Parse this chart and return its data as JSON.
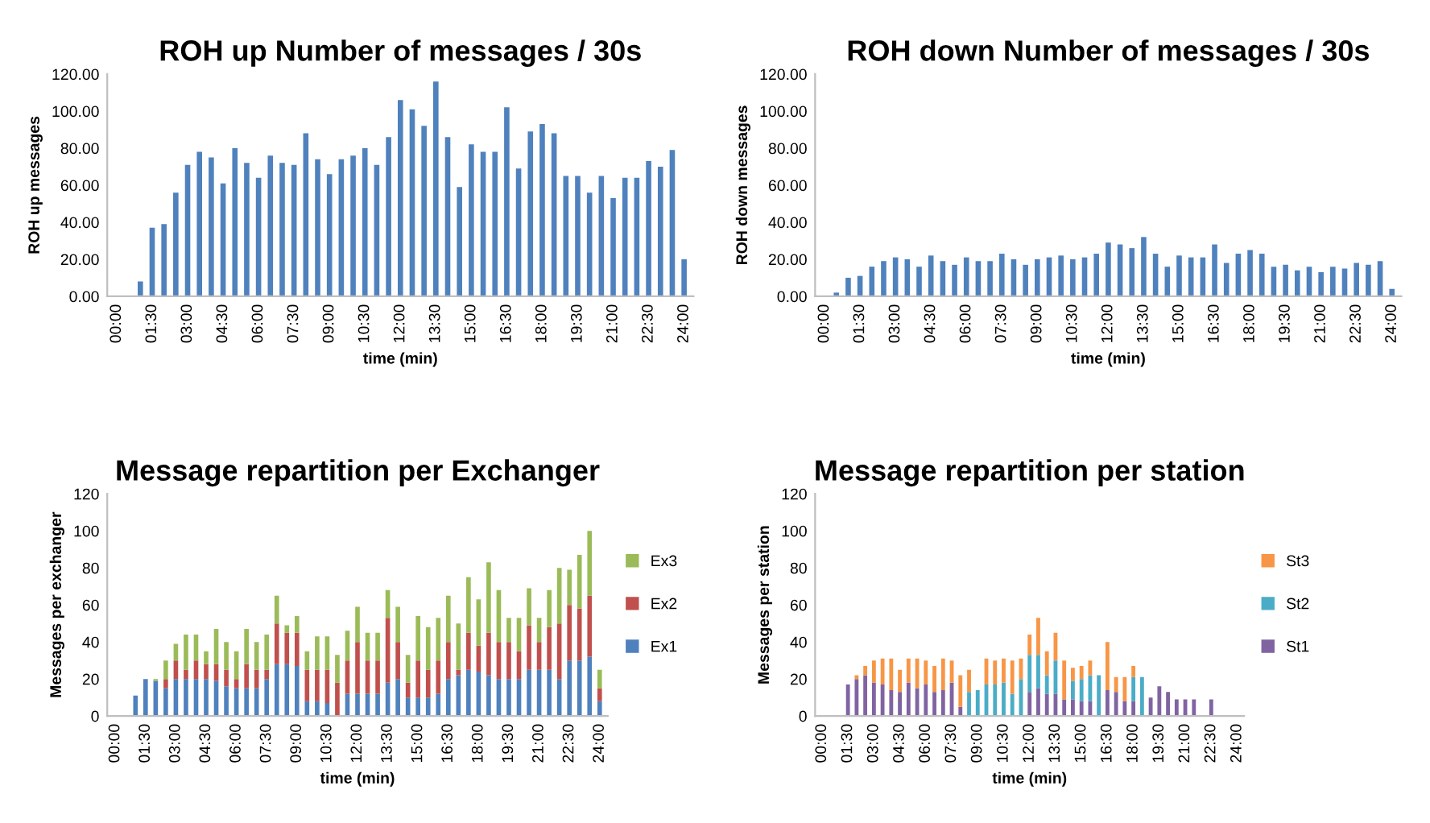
{
  "chart_data": [
    {
      "type": "bar",
      "title": "ROH up Number of messages / 30s",
      "xlabel": "time (min)",
      "ylabel": "ROH up messages",
      "categories": [
        "00:00",
        null,
        null,
        "01:30",
        null,
        null,
        "03:00",
        null,
        null,
        "04:30",
        null,
        null,
        "06:00",
        null,
        null,
        "07:30",
        null,
        null,
        "09:00",
        null,
        null,
        "10:30",
        null,
        null,
        "12:00",
        null,
        null,
        "13:30",
        null,
        null,
        "15:00",
        null,
        null,
        "16:30",
        null,
        null,
        "18:00",
        null,
        null,
        "19:30",
        null,
        null,
        "21:00",
        null,
        null,
        "22:30",
        null,
        null,
        "24:00"
      ],
      "series": [
        {
          "color": "#4f81bd",
          "values": [
            0,
            0,
            8,
            37,
            39,
            56,
            71,
            78,
            75,
            61,
            80,
            72,
            64,
            76,
            72,
            71,
            88,
            74,
            66,
            74,
            76,
            80,
            71,
            86,
            106,
            101,
            92,
            116,
            86,
            59,
            82,
            78,
            78,
            102,
            69,
            89,
            93,
            88,
            65,
            65,
            56,
            65,
            53,
            64,
            64,
            73,
            70,
            79,
            20
          ]
        }
      ],
      "ylim": [
        0,
        120
      ],
      "yticks": [
        {
          "value": 0,
          "label": "0.00"
        },
        {
          "value": 20,
          "label": "20.00"
        },
        {
          "value": 40,
          "label": "40.00"
        },
        {
          "value": 60,
          "label": "60.00"
        },
        {
          "value": 80,
          "label": "80.00"
        },
        {
          "value": 100,
          "label": "100.00"
        },
        {
          "value": 120,
          "label": "120.00"
        }
      ],
      "grid": false,
      "legend": false
    },
    {
      "type": "bar",
      "title": "ROH down Number of messages / 30s",
      "xlabel": "time (min)",
      "ylabel": "ROH down messages",
      "categories": [
        "00:00",
        null,
        null,
        "01:30",
        null,
        null,
        "03:00",
        null,
        null,
        "04:30",
        null,
        null,
        "06:00",
        null,
        null,
        "07:30",
        null,
        null,
        "09:00",
        null,
        null,
        "10:30",
        null,
        null,
        "12:00",
        null,
        null,
        "13:30",
        null,
        null,
        "15:00",
        null,
        null,
        "16:30",
        null,
        null,
        "18:00",
        null,
        null,
        "19:30",
        null,
        null,
        "21:00",
        null,
        null,
        "22:30",
        null,
        null,
        "24:00"
      ],
      "series": [
        {
          "color": "#4f81bd",
          "values": [
            0,
            2,
            10,
            11,
            16,
            19,
            21,
            20,
            16,
            22,
            19,
            17,
            21,
            19,
            19,
            23,
            20,
            17,
            20,
            21,
            22,
            20,
            21,
            23,
            29,
            28,
            26,
            32,
            23,
            16,
            22,
            21,
            21,
            28,
            18,
            23,
            25,
            23,
            16,
            17,
            14,
            16,
            13,
            16,
            15,
            18,
            17,
            19,
            4
          ]
        }
      ],
      "ylim": [
        0,
        120
      ],
      "yticks": [
        {
          "value": 0,
          "label": "0.00"
        },
        {
          "value": 20,
          "label": "20.00"
        },
        {
          "value": 40,
          "label": "40.00"
        },
        {
          "value": 60,
          "label": "60.00"
        },
        {
          "value": 80,
          "label": "80.00"
        },
        {
          "value": 100,
          "label": "100.00"
        },
        {
          "value": 120,
          "label": "120.00"
        }
      ],
      "grid": false,
      "legend": false
    },
    {
      "type": "bar",
      "stacked": true,
      "title": "Message repartition per Exchanger",
      "xlabel": "time (min)",
      "ylabel": "Messages per exchanger",
      "categories": [
        "00:00",
        null,
        null,
        "01:30",
        null,
        null,
        "03:00",
        null,
        null,
        "04:30",
        null,
        null,
        "06:00",
        null,
        null,
        "07:30",
        null,
        null,
        "09:00",
        null,
        null,
        "10:30",
        null,
        null,
        "12:00",
        null,
        null,
        "13:30",
        null,
        null,
        "15:00",
        null,
        null,
        "16:30",
        null,
        null,
        "18:00",
        null,
        null,
        "19:30",
        null,
        null,
        "21:00",
        null,
        null,
        "22:30",
        null,
        null,
        "24:00"
      ],
      "series": [
        {
          "name": "Ex1",
          "color": "#4f81bd",
          "values": [
            0,
            0,
            11,
            20,
            19,
            15,
            20,
            20,
            20,
            20,
            19,
            16,
            15,
            15,
            15,
            20,
            28,
            28,
            27,
            8,
            8,
            7,
            0,
            12,
            12,
            12,
            12,
            18,
            20,
            10,
            10,
            10,
            12,
            20,
            22,
            25,
            24,
            22,
            20,
            20,
            20,
            25,
            25,
            25,
            20,
            30,
            30,
            32,
            8
          ]
        },
        {
          "name": "Ex2",
          "color": "#c0504d",
          "values": [
            0,
            0,
            0,
            0,
            0,
            5,
            10,
            5,
            10,
            8,
            9,
            9,
            5,
            13,
            10,
            5,
            22,
            17,
            18,
            17,
            17,
            18,
            18,
            18,
            28,
            18,
            18,
            35,
            20,
            8,
            20,
            15,
            18,
            20,
            3,
            20,
            14,
            23,
            20,
            20,
            15,
            24,
            15,
            23,
            30,
            30,
            28,
            33,
            7
          ]
        },
        {
          "name": "Ex3",
          "color": "#9bbb59",
          "values": [
            0,
            0,
            0,
            0,
            1,
            10,
            9,
            19,
            14,
            7,
            19,
            15,
            15,
            19,
            15,
            19,
            15,
            4,
            9,
            10,
            18,
            18,
            15,
            16,
            19,
            15,
            15,
            15,
            19,
            15,
            24,
            23,
            23,
            25,
            25,
            30,
            25,
            38,
            28,
            13,
            18,
            20,
            13,
            20,
            30,
            19,
            29,
            35,
            10
          ]
        }
      ],
      "ylim": [
        0,
        120
      ],
      "yticks": [
        0,
        20,
        40,
        60,
        80,
        100,
        120
      ],
      "grid": false,
      "legend": "right"
    },
    {
      "type": "bar",
      "stacked": true,
      "title": "Message repartition per station",
      "xlabel": "time (min)",
      "ylabel": "Messages per station",
      "categories": [
        "00:00",
        null,
        null,
        "01:30",
        null,
        null,
        "03:00",
        null,
        null,
        "04:30",
        null,
        null,
        "06:00",
        null,
        null,
        "07:30",
        null,
        null,
        "09:00",
        null,
        null,
        "10:30",
        null,
        null,
        "12:00",
        null,
        null,
        "13:30",
        null,
        null,
        "15:00",
        null,
        null,
        "16:30",
        null,
        null,
        "18:00",
        null,
        null,
        "19:30",
        null,
        null,
        "21:00",
        null,
        null,
        "22:30",
        null,
        null,
        "24:00"
      ],
      "series": [
        {
          "name": "St1",
          "color": "#8064a2",
          "values": [
            0,
            0,
            0,
            17,
            20,
            22,
            18,
            17,
            14,
            13,
            18,
            15,
            17,
            13,
            14,
            18,
            5,
            0,
            0,
            0,
            0,
            0,
            0,
            0,
            13,
            15,
            12,
            12,
            9,
            9,
            8,
            8,
            0,
            14,
            13,
            8,
            8,
            0,
            10,
            16,
            13,
            9,
            9,
            9,
            0,
            9,
            0,
            0,
            0
          ]
        },
        {
          "name": "St2",
          "color": "#4bacc6",
          "values": [
            0,
            0,
            0,
            0,
            0,
            0,
            0,
            0,
            0,
            0,
            0,
            0,
            0,
            0,
            0,
            0,
            0,
            13,
            14,
            17,
            17,
            18,
            12,
            20,
            20,
            18,
            10,
            18,
            0,
            10,
            12,
            14,
            22,
            0,
            0,
            0,
            13,
            21,
            0,
            0,
            0,
            0,
            0,
            0,
            0,
            0,
            0,
            0,
            0
          ]
        },
        {
          "name": "St3",
          "color": "#f79646",
          "values": [
            0,
            0,
            0,
            0,
            2,
            5,
            12,
            14,
            17,
            12,
            13,
            16,
            13,
            14,
            17,
            12,
            17,
            12,
            0,
            14,
            13,
            13,
            18,
            11,
            11,
            20,
            13,
            15,
            21,
            7,
            7,
            8,
            0,
            26,
            8,
            13,
            6,
            0,
            0,
            0,
            0,
            0,
            0,
            0,
            0,
            0,
            0,
            0,
            0
          ]
        }
      ],
      "ylim": [
        0,
        120
      ],
      "yticks": [
        0,
        20,
        40,
        60,
        80,
        100,
        120
      ],
      "grid": false,
      "legend": "right"
    }
  ]
}
